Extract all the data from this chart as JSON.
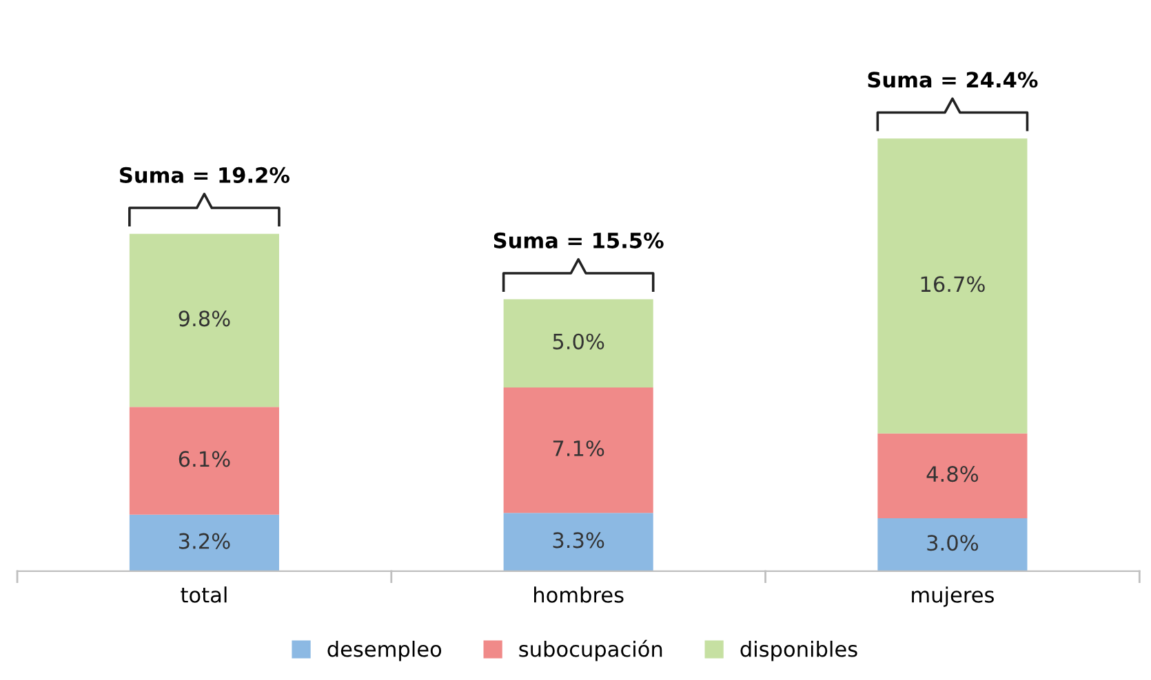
{
  "chart_data": {
    "type": "bar",
    "stacked": true,
    "categories": [
      "total",
      "hombres",
      "mujeres"
    ],
    "series": [
      {
        "name": "desempleo",
        "color": "#8cb9e3",
        "values": [
          3.2,
          3.3,
          3.0
        ],
        "value_labels": [
          "3.2%",
          "3.3%",
          "3.0%"
        ]
      },
      {
        "name": "subocupación",
        "color": "#f08a89",
        "values": [
          6.1,
          7.1,
          4.8
        ],
        "value_labels": [
          "6.1%",
          "7.1%",
          "4.8%"
        ]
      },
      {
        "name": "disponibles",
        "color": "#c6e0a2",
        "values": [
          9.8,
          5.0,
          16.7
        ],
        "value_labels": [
          "9.8%",
          "5.0%",
          "16.7%"
        ]
      }
    ],
    "totals": [
      "Suma = 19.2%",
      "Suma = 15.5%",
      "Suma = 24.4%"
    ],
    "grid": false,
    "legend": "bottom"
  }
}
